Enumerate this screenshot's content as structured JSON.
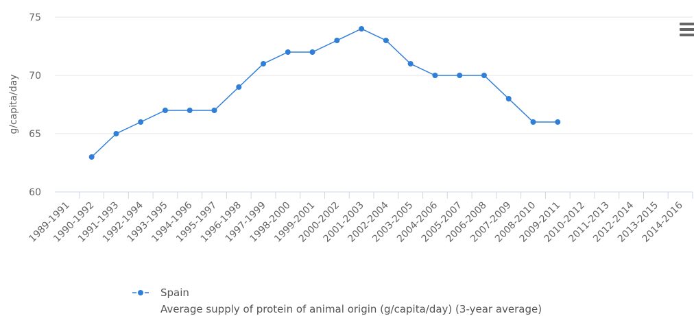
{
  "chart_data": {
    "type": "line",
    "ylabel": "g/capita/day",
    "categories": [
      "1989-1991",
      "1990-1992",
      "1991-1993",
      "1992-1994",
      "1993-1995",
      "1994-1996",
      "1995-1997",
      "1996-1998",
      "1997-1999",
      "1998-2000",
      "1999-2001",
      "2000-2002",
      "2001-2003",
      "2002-2004",
      "2003-2005",
      "2004-2006",
      "2005-2007",
      "2006-2008",
      "2007-2009",
      "2008-2010",
      "2009-2011",
      "2010-2012",
      "2011-2013",
      "2012-2014",
      "2013-2015",
      "2014-2016"
    ],
    "series": [
      {
        "name": "Spain",
        "description": "Average supply of protein of animal origin (g/capita/day) (3-year average)",
        "color": "#2f7ed8",
        "values": [
          null,
          63,
          65,
          66,
          67,
          67,
          67,
          69,
          71,
          72,
          72,
          73,
          74,
          73,
          71,
          70,
          70,
          70,
          68,
          66,
          66,
          null,
          null,
          null,
          null,
          null
        ]
      }
    ],
    "ylim": [
      60,
      75
    ],
    "yticks": [
      60,
      65,
      70,
      75
    ],
    "grid": true
  }
}
